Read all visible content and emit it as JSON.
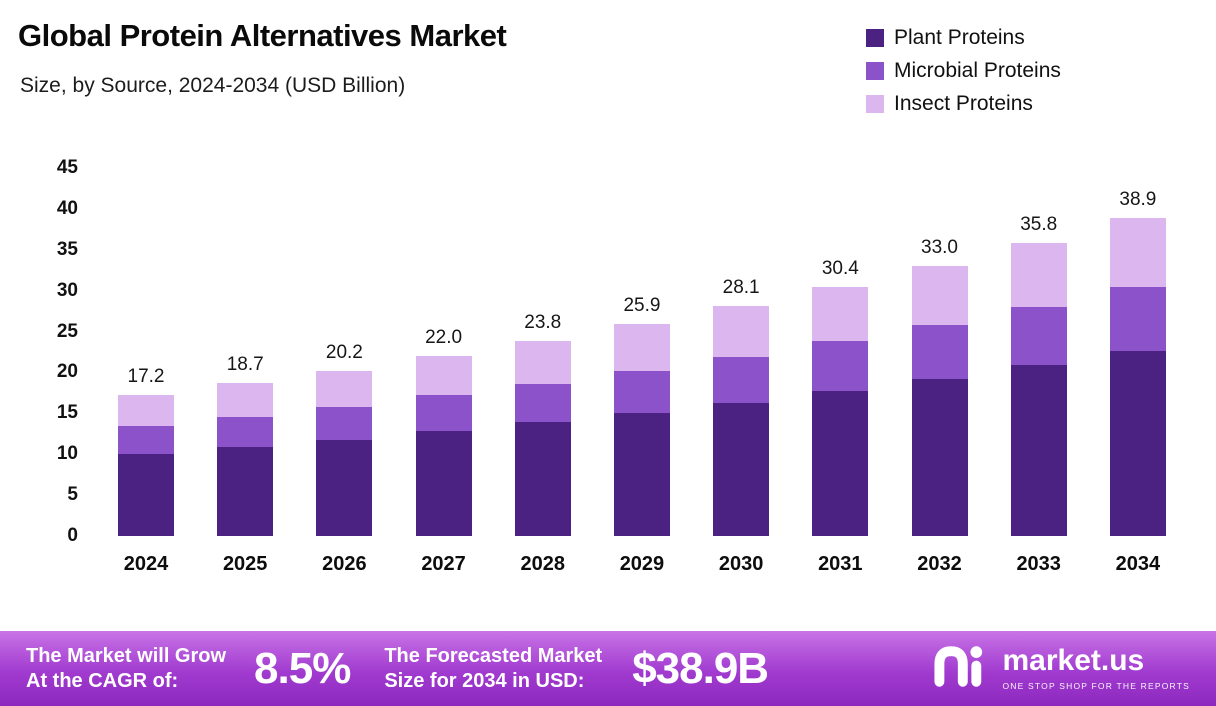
{
  "chart_data": {
    "type": "bar",
    "stacked": true,
    "title": "Global Protein Alternatives Market",
    "subtitle": "Size, by Source, 2024-2034 (USD Billion)",
    "categories": [
      "2024",
      "2025",
      "2026",
      "2027",
      "2028",
      "2029",
      "2030",
      "2031",
      "2032",
      "2033",
      "2034"
    ],
    "series": [
      {
        "name": "Plant Proteins",
        "color": "#4B2182",
        "values": [
          10.0,
          10.9,
          11.8,
          12.8,
          13.9,
          15.1,
          16.3,
          17.7,
          19.2,
          20.9,
          22.6
        ]
      },
      {
        "name": "Microbial Proteins",
        "color": "#8B52C9",
        "values": [
          3.4,
          3.7,
          4.0,
          4.4,
          4.7,
          5.1,
          5.6,
          6.1,
          6.6,
          7.1,
          7.8
        ]
      },
      {
        "name": "Insect Proteins",
        "color": "#DCB6EE",
        "values": [
          3.8,
          4.1,
          4.4,
          4.8,
          5.2,
          5.7,
          6.2,
          6.6,
          7.2,
          7.8,
          8.5
        ]
      }
    ],
    "totals": [
      17.2,
      18.7,
      20.2,
      22.0,
      23.8,
      25.9,
      28.1,
      30.4,
      33.0,
      35.8,
      38.9
    ],
    "ylim": [
      0,
      45
    ],
    "yticks": [
      0,
      5,
      10,
      15,
      20,
      25,
      30,
      35,
      40,
      45
    ],
    "grid": false,
    "legend_position": "top-right",
    "xlabel": "",
    "ylabel": ""
  },
  "footer": {
    "cagr_label_line1": "The Market will Grow",
    "cagr_label_line2": "At the CAGR of:",
    "cagr_value": "8.5%",
    "forecast_label_line1": "The Forecasted Market",
    "forecast_label_line2": "Size for 2034 in USD:",
    "forecast_value": "$38.9B",
    "brand_name": "market.us",
    "brand_tagline": "ONE STOP SHOP FOR THE REPORTS"
  }
}
